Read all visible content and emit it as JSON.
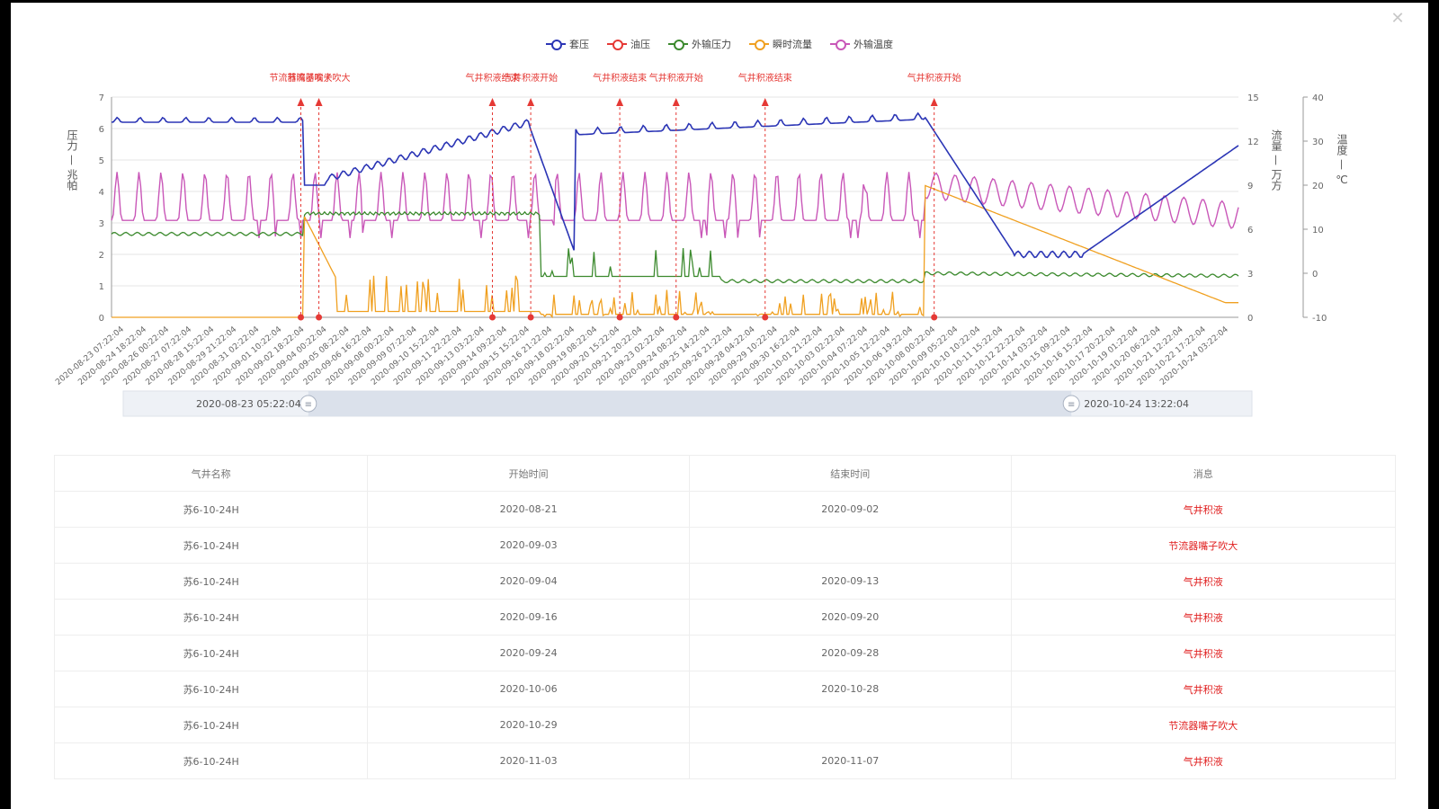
{
  "dialog": {
    "close_icon": "close-icon"
  },
  "legend": [
    {
      "label": "套压",
      "color": "#2b35b5"
    },
    {
      "label": "油压",
      "color": "#e53935"
    },
    {
      "label": "外输压力",
      "color": "#3c8a2e"
    },
    {
      "label": "瞬时流量",
      "color": "#f0a020"
    },
    {
      "label": "外输温度",
      "color": "#c957b8"
    }
  ],
  "chart_data": {
    "type": "line",
    "y_left": {
      "label": "压力 — 兆帕",
      "min": 0,
      "max": 7,
      "ticks": [
        "0",
        "1",
        "2",
        "3",
        "4",
        "5",
        "6",
        "7"
      ]
    },
    "y_right1": {
      "label": "流量 — 万方",
      "min": 0,
      "max": 15,
      "ticks": [
        "0",
        "3",
        "6",
        "9",
        "12",
        "15"
      ]
    },
    "y_right2": {
      "label": "温度 — ℃",
      "min": -10,
      "max": 40,
      "ticks": [
        "-10",
        "0",
        "10",
        "20",
        "30",
        "40"
      ]
    },
    "x_labels": [
      "2020-08-23 07:22:04",
      "2020-08-24 18:22:04",
      "2020-08-26 00:22:04",
      "2020-08-27 07:22:04",
      "2020-08-28 15:22:04",
      "2020-08-29 21:22:04",
      "2020-08-31 02:22:04",
      "2020-09-01 10:22:04",
      "2020-09-02 18:22:04",
      "2020-09-04 00:22:04",
      "2020-09-05 08:22:04",
      "2020-09-06 16:22:04",
      "2020-09-08 00:22:04",
      "2020-09-09 07:22:04",
      "2020-09-10 15:22:04",
      "2020-09-11 22:22:04",
      "2020-09-13 03:22:04",
      "2020-09-14 09:22:04",
      "2020-09-15 15:22:04",
      "2020-09-16 21:22:04",
      "2020-09-18 02:22:04",
      "2020-09-19 08:22:04",
      "2020-09-20 15:22:04",
      "2020-09-21 20:22:04",
      "2020-09-23 02:22:04",
      "2020-09-24 08:22:04",
      "2020-09-25 14:22:04",
      "2020-09-26 21:22:04",
      "2020-09-28 04:22:04",
      "2020-09-29 10:22:04",
      "2020-09-30 16:22:04",
      "2020-10-01 21:22:04",
      "2020-10-03 02:22:04",
      "2020-10-04 07:22:04",
      "2020-10-05 12:22:04",
      "2020-10-06 19:22:04",
      "2020-10-08 00:22:04",
      "2020-10-09 05:22:04",
      "2020-10-10 10:22:04",
      "2020-10-11 15:22:04",
      "2020-10-12 22:22:04",
      "2020-10-14 03:22:04",
      "2020-10-15 09:22:04",
      "2020-10-16 15:22:04",
      "2020-10-17 20:22:04",
      "2020-10-19 01:22:04",
      "2020-10-20 06:22:04",
      "2020-10-21 12:22:04",
      "2020-10-22 17:22:04",
      "2020-10-24 03:22:04"
    ],
    "markers": [
      {
        "x": 0.168,
        "label": "节流器嘴子吹大"
      },
      {
        "x": 0.184,
        "label": "节流器嘴子吹大"
      },
      {
        "x": 0.338,
        "label": "气井积液结束"
      },
      {
        "x": 0.372,
        "label": "气井积液开始"
      },
      {
        "x": 0.451,
        "label": "气井积液结束"
      },
      {
        "x": 0.501,
        "label": "气井积液开始"
      },
      {
        "x": 0.58,
        "label": "气井积液结束"
      },
      {
        "x": 0.73,
        "label": "气井积液开始"
      }
    ],
    "zoom": {
      "start_label": "2020-08-23 05:22:04",
      "end_label": "2020-10-24 13:22:04",
      "start": 0.16,
      "end": 0.84
    }
  },
  "table": {
    "headers": [
      "气井名称",
      "开始时间",
      "结束时间",
      "消息"
    ],
    "rows": [
      [
        "苏6-10-24H",
        "2020-08-21",
        "2020-09-02",
        "气井积液"
      ],
      [
        "苏6-10-24H",
        "2020-09-03",
        "",
        "节流器嘴子吹大"
      ],
      [
        "苏6-10-24H",
        "2020-09-04",
        "2020-09-13",
        "气井积液"
      ],
      [
        "苏6-10-24H",
        "2020-09-16",
        "2020-09-20",
        "气井积液"
      ],
      [
        "苏6-10-24H",
        "2020-09-24",
        "2020-09-28",
        "气井积液"
      ],
      [
        "苏6-10-24H",
        "2020-10-06",
        "2020-10-28",
        "气井积液"
      ],
      [
        "苏6-10-24H",
        "2020-10-29",
        "",
        "节流器嘴子吹大"
      ],
      [
        "苏6-10-24H",
        "2020-11-03",
        "2020-11-07",
        "气井积液"
      ]
    ]
  }
}
